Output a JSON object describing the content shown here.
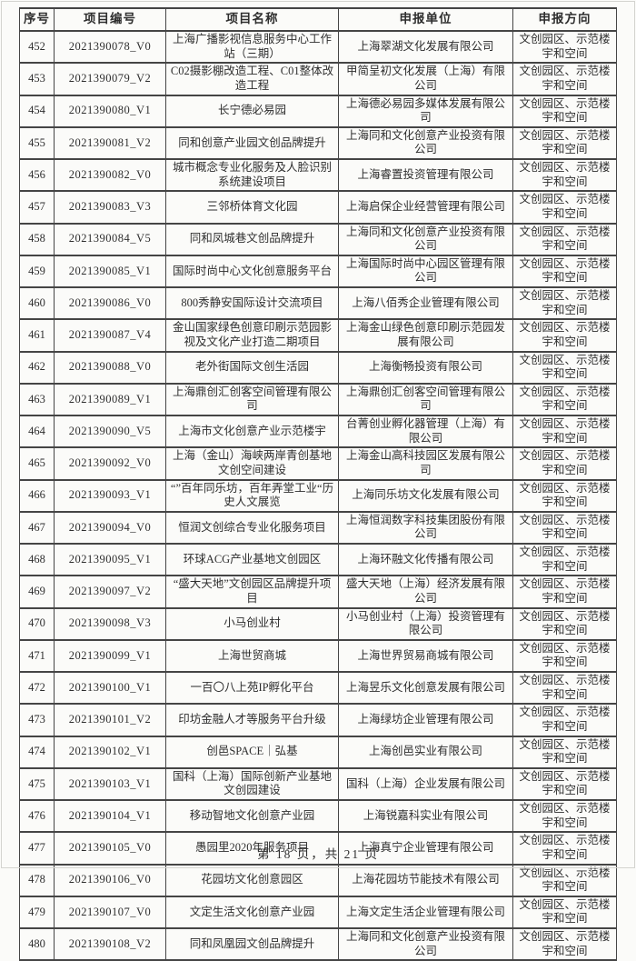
{
  "colors": {
    "border": "#454545",
    "text": "#2e2e2e",
    "background": "#fbfbf9"
  },
  "table": {
    "headers": [
      "序号",
      "项目编号",
      "项目名称",
      "申报单位",
      "申报方向"
    ],
    "rows": [
      [
        "452",
        "2021390078_V0",
        "上海广播影视信息服务中心工作站（三期）",
        "上海翠湖文化发展有限公司",
        "文创园区、示范楼宇和空间"
      ],
      [
        "453",
        "2021390079_V2",
        "C02摄影棚改造工程、C01整体改造工程",
        "甲简呈初文化发展（上海）有限公司",
        "文创园区、示范楼宇和空间"
      ],
      [
        "454",
        "2021390080_V1",
        "长宁德必易园",
        "上海德必易园多媒体发展有限公司",
        "文创园区、示范楼宇和空间"
      ],
      [
        "455",
        "2021390081_V2",
        "同和创意产业园文创品牌提升",
        "上海同和文化创意产业投资有限公司",
        "文创园区、示范楼宇和空间"
      ],
      [
        "456",
        "2021390082_V0",
        "城市概念专业化服务及人脸识别系统建设项目",
        "上海睿置投资管理有限公司",
        "文创园区、示范楼宇和空间"
      ],
      [
        "457",
        "2021390083_V3",
        "三邻桥体育文化园",
        "上海启保企业经营管理有限公司",
        "文创园区、示范楼宇和空间"
      ],
      [
        "458",
        "2021390084_V5",
        "同和凤城巷文创品牌提升",
        "上海同和文化创意产业投资有限公司",
        "文创园区、示范楼宇和空间"
      ],
      [
        "459",
        "2021390085_V1",
        "国际时尚中心文化创意服务平台",
        "上海国际时尚中心园区管理有限公司",
        "文创园区、示范楼宇和空间"
      ],
      [
        "460",
        "2021390086_V0",
        "800秀静安国际设计交流项目",
        "上海八佰秀企业管理有限公司",
        "文创园区、示范楼宇和空间"
      ],
      [
        "461",
        "2021390087_V4",
        "金山国家绿色创意印刷示范园影视及文化产业打造二期项目",
        "上海金山绿色创意印刷示范园发展有限公司",
        "文创园区、示范楼宇和空间"
      ],
      [
        "462",
        "2021390088_V0",
        "老外街国际文创生活园",
        "上海衡畅投资有限公司",
        "文创园区、示范楼宇和空间"
      ],
      [
        "463",
        "2021390089_V1",
        "上海鼎创汇创客空间管理有限公司",
        "上海鼎创汇创客空间管理有限公司",
        "文创园区、示范楼宇和空间"
      ],
      [
        "464",
        "2021390090_V5",
        "上海市文化创意产业示范楼宇",
        "台菁创业孵化器管理（上海）有限公司",
        "文创园区、示范楼宇和空间"
      ],
      [
        "465",
        "2021390092_V0",
        "上海（金山）海峡两岸青创基地文创空间建设",
        "上海金山高科技园区发展有限公司",
        "文创园区、示范楼宇和空间"
      ],
      [
        "466",
        "2021390093_V1",
        "“”百年同乐坊，百年弄堂工业“历史人文展览",
        "上海同乐坊文化发展有限公司",
        "文创园区、示范楼宇和空间"
      ],
      [
        "467",
        "2021390094_V0",
        "恒润文创综合专业化服务项目",
        "上海恒润数字科技集团股份有限公司",
        "文创园区、示范楼宇和空间"
      ],
      [
        "468",
        "2021390095_V1",
        "环球ACG产业基地文创园区",
        "上海环融文化传播有限公司",
        "文创园区、示范楼宇和空间"
      ],
      [
        "469",
        "2021390097_V2",
        "“盛大天地”文创园区品牌提升项目",
        "盛大天地（上海）经济发展有限公司",
        "文创园区、示范楼宇和空间"
      ],
      [
        "470",
        "2021390098_V3",
        "小马创业村",
        "小马创业村（上海）投资管理有限公司",
        "文创园区、示范楼宇和空间"
      ],
      [
        "471",
        "2021390099_V1",
        "上海世贸商城",
        "上海世界贸易商城有限公司",
        "文创园区、示范楼宇和空间"
      ],
      [
        "472",
        "2021390100_V1",
        "一百〇八上苑IP孵化平台",
        "上海昱乐文化创意发展有限公司",
        "文创园区、示范楼宇和空间"
      ],
      [
        "473",
        "2021390101_V2",
        "印坊金融人才等服务平台升级",
        "上海绿坊企业管理有限公司",
        "文创园区、示范楼宇和空间"
      ],
      [
        "474",
        "2021390102_V1",
        "创邑SPACE｜弘基",
        "上海创邑实业有限公司",
        "文创园区、示范楼宇和空间"
      ],
      [
        "475",
        "2021390103_V1",
        "国科（上海）国际创新产业基地文创园建设",
        "国科（上海）企业发展有限公司",
        "文创园区、示范楼宇和空间"
      ],
      [
        "476",
        "2021390104_V1",
        "移动智地文化创意产业园",
        "上海锐嘉科实业有限公司",
        "文创园区、示范楼宇和空间"
      ],
      [
        "477",
        "2021390105_V0",
        "愚园里2020年服务项目",
        "上海真宁企业管理有限公司",
        "文创园区、示范楼宇和空间"
      ],
      [
        "478",
        "2021390106_V0",
        "花园坊文化创意园区",
        "上海花园坊节能技术有限公司",
        "文创园区、示范楼宇和空间"
      ],
      [
        "479",
        "2021390107_V0",
        "文定生活文化创意产业园",
        "上海文定生活企业管理有限公司",
        "文创园区、示范楼宇和空间"
      ],
      [
        "480",
        "2021390108_V2",
        "同和凤凰园文创品牌提升",
        "上海同和文化创意产业投资有限公司",
        "文创园区、示范楼宇和空间"
      ]
    ]
  },
  "footer": {
    "page_info": "第 18 页，共 21 页"
  }
}
